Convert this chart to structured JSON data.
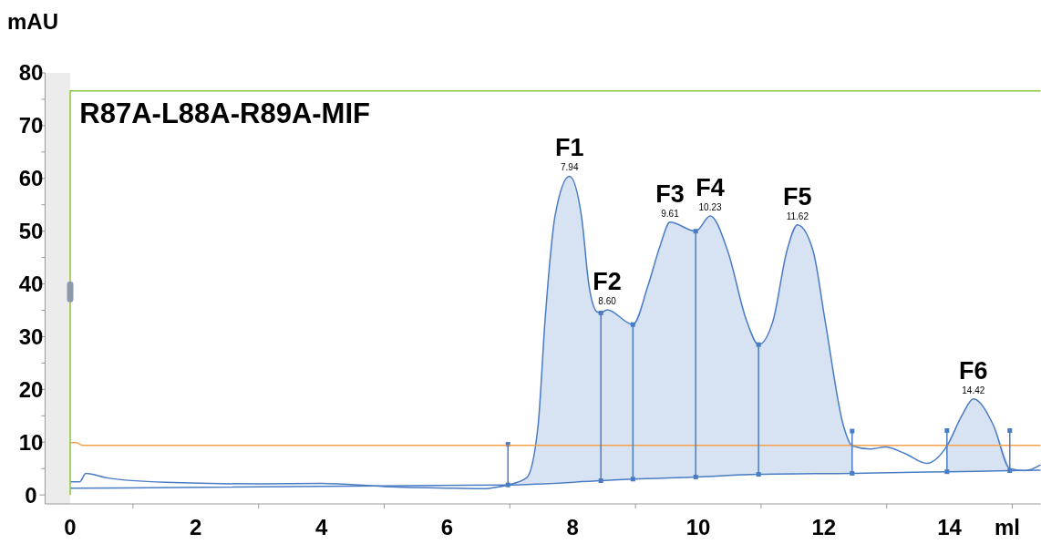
{
  "chart_data": {
    "type": "line",
    "title": "R87A-L88A-R89A-MIF",
    "ylabel": "mAU",
    "xlabel": "ml",
    "xlim": [
      -0.4,
      15.45
    ],
    "ylim": [
      -1.7,
      80
    ],
    "xticks": [
      0,
      {
        "value": 1,
        "label": null
      },
      2,
      {
        "value": 3,
        "label": null
      },
      4,
      {
        "value": 5,
        "label": null
      },
      6,
      {
        "value": 7,
        "label": null
      },
      8,
      {
        "value": 9,
        "label": null
      },
      10,
      {
        "value": 11,
        "label": null
      },
      12,
      {
        "value": 13,
        "label": null
      },
      14,
      {
        "value": 15,
        "label": null
      }
    ],
    "yticks": [
      0,
      {
        "value": 5,
        "label": null
      },
      10,
      {
        "value": 15,
        "label": null
      },
      20,
      {
        "value": 25,
        "label": null
      },
      30,
      {
        "value": 35,
        "label": null
      },
      40,
      {
        "value": 45,
        "label": null
      },
      50,
      {
        "value": 55,
        "label": null
      },
      60,
      {
        "value": 65,
        "label": null
      },
      70,
      {
        "value": 75,
        "label": null
      },
      80
    ],
    "grid": false,
    "line_style": "solid",
    "series": [
      {
        "color": "#4a7cc4",
        "x": [
          0,
          0.15,
          0.25,
          0.6,
          1.5,
          3,
          4,
          5,
          6,
          6.6,
          6.8,
          6.97,
          7.27,
          7.45,
          7.56,
          7.72,
          7.95,
          8.14,
          8.26,
          8.39,
          8.45,
          8.55,
          8.96,
          9.2,
          9.4,
          9.55,
          9.96,
          10.19,
          10.47,
          10.77,
          10.96,
          11.19,
          11.41,
          11.58,
          11.83,
          12.02,
          12.31,
          12.45,
          12.74,
          12.98,
          13.3,
          13.64,
          13.96,
          14.2,
          14.38,
          14.7,
          14.96,
          15.21,
          15.45
        ],
        "values": [
          2.5,
          2.5,
          4.1,
          3.2,
          2.4,
          2.1,
          2.2,
          1.6,
          1.3,
          1.2,
          1.5,
          1.9,
          3.3,
          13.2,
          33,
          52.9,
          60.4,
          52.9,
          39.7,
          34.7,
          34.5,
          35.1,
          32.3,
          39.7,
          47.5,
          51.7,
          50,
          52.9,
          46.2,
          33,
          28.5,
          33,
          46.2,
          51.2,
          46.2,
          33,
          13.2,
          9.3,
          8.7,
          9.1,
          7.8,
          6,
          9.3,
          15.1,
          18.2,
          13.2,
          5,
          4.6,
          5.7
        ],
        "lower": [
          null,
          null,
          null,
          null,
          null,
          null,
          null,
          null,
          null,
          null,
          null,
          1.9,
          2.1,
          2.2,
          2.3,
          2.4,
          2.5,
          2.6,
          2.65,
          2.7,
          2.7,
          2.75,
          3,
          3.1,
          3.2,
          3.25,
          3.4,
          3.5,
          3.6,
          3.75,
          3.9,
          3.92,
          3.95,
          3.97,
          4,
          4.03,
          4.08,
          4.1,
          null,
          null,
          null,
          null,
          4.4,
          4.45,
          4.5,
          4.55,
          4.6,
          null,
          null
        ],
        "upper": [
          null,
          null,
          null,
          null,
          null,
          null,
          null,
          null,
          null,
          null,
          null,
          1.9,
          3.3,
          13.2,
          33,
          52.9,
          60.4,
          52.9,
          39.7,
          34.7,
          34.5,
          35.1,
          32.3,
          39.7,
          47.5,
          51.7,
          50,
          52.9,
          46.2,
          33,
          28.5,
          33,
          46.2,
          51.2,
          46.2,
          33,
          13.2,
          9.3,
          null,
          null,
          null,
          null,
          9.3,
          15.1,
          18.2,
          13.2,
          5,
          null,
          null
        ]
      },
      {
        "color": "#4a7cc4",
        "x": [
          0,
          6.97,
          8.45,
          8.96,
          9.96,
          10.96,
          12.45,
          13.96,
          14.96,
          15.45
        ],
        "values": [
          1.3,
          1.9,
          2.7,
          3,
          3.4,
          3.9,
          4.1,
          4.4,
          4.6,
          4.7
        ]
      },
      {
        "type": "scatter",
        "marker": "square",
        "color": "#4a7cc4",
        "x": [
          6.97,
          12.45,
          13.96,
          14.96
        ],
        "values": [
          9.6,
          12.1,
          12.2,
          12.2
        ]
      },
      {
        "color": "#f5a04a",
        "x": [
          0,
          0.1,
          0.2,
          15.45
        ],
        "values": [
          9.9,
          9.9,
          9.4,
          9.4
        ]
      },
      {
        "color": "#8cc63f",
        "x": [
          0,
          0,
          15.45
        ],
        "values": [
          0,
          76.6,
          76.6
        ]
      }
    ],
    "ref_lines": [
      {
        "axis": "x",
        "value": 6.97,
        "label": null,
        "color": "#4a7cc4"
      },
      {
        "axis": "x",
        "value": 8.45,
        "label": null,
        "color": "#4a7cc4"
      },
      {
        "axis": "x",
        "value": 8.96,
        "label": null,
        "color": "#4a7cc4"
      },
      {
        "axis": "x",
        "value": 9.96,
        "label": null,
        "color": "#4a7cc4"
      },
      {
        "axis": "x",
        "value": 10.96,
        "label": null,
        "color": "#4a7cc4"
      },
      {
        "axis": "x",
        "value": 12.45,
        "label": null,
        "color": "#4a7cc4"
      },
      {
        "axis": "x",
        "value": 13.96,
        "label": null,
        "color": "#4a7cc4"
      },
      {
        "axis": "x",
        "value": 14.96,
        "label": null,
        "color": "#4a7cc4"
      }
    ],
    "bands": [
      {
        "axis": "x",
        "from": -0.4,
        "to": 0,
        "label": null,
        "color": "#ececec"
      }
    ],
    "annotations": [
      {
        "text": "F1",
        "x": 7.95,
        "y": 60.4
      },
      {
        "text": "7.94",
        "x": 7.95,
        "y": 60.4
      },
      {
        "text": "F2",
        "x": 8.55,
        "y": 35.1
      },
      {
        "text": "8.60",
        "x": 8.55,
        "y": 35.1
      },
      {
        "text": "F3",
        "x": 9.55,
        "y": 51.7
      },
      {
        "text": "9.61",
        "x": 9.55,
        "y": 51.7
      },
      {
        "text": "F4",
        "x": 10.19,
        "y": 52.9
      },
      {
        "text": "10.23",
        "x": 10.19,
        "y": 52.9
      },
      {
        "text": "F5",
        "x": 11.58,
        "y": 51.2
      },
      {
        "text": "11.62",
        "x": 11.58,
        "y": 51.2
      },
      {
        "text": "F6",
        "x": 14.38,
        "y": 18.2
      },
      {
        "text": "14.42",
        "x": 14.38,
        "y": 18.2
      }
    ]
  }
}
